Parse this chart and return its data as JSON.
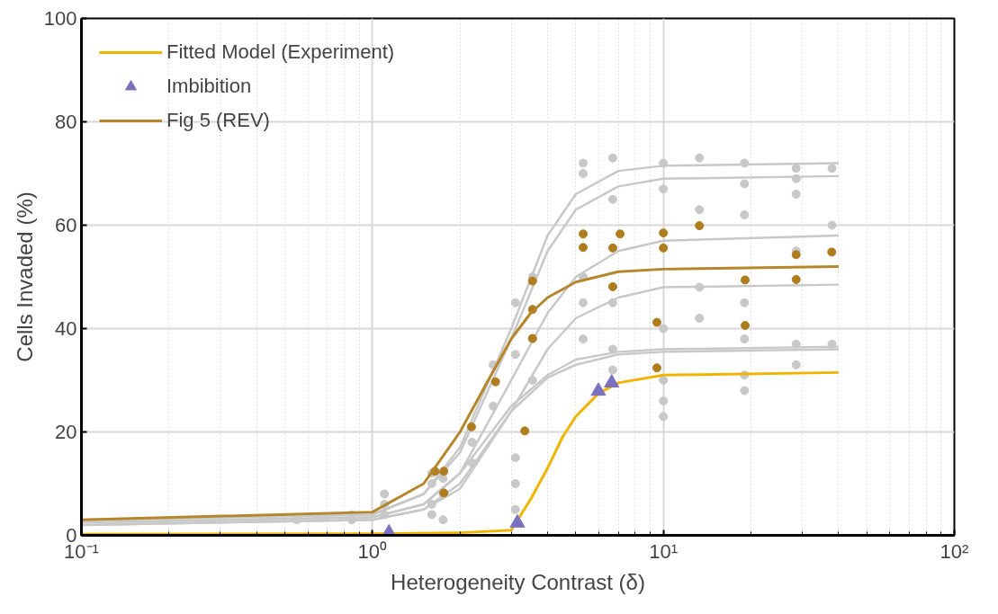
{
  "chart_data": {
    "type": "line",
    "xlabel": "Heterogeneity Contrast (δ)",
    "ylabel": "Cells Invaded (%)",
    "log": "x",
    "xlim": [
      0.1,
      100
    ],
    "xticks": [
      {
        "value": 0.1,
        "label": "10⁻¹"
      },
      {
        "value": 1,
        "label": "10⁰"
      },
      {
        "value": 10,
        "label": "10¹"
      },
      {
        "value": 100,
        "label": "10²"
      }
    ],
    "ylim": [
      0,
      100
    ],
    "yticks": [
      0,
      20,
      40,
      60,
      80,
      100
    ],
    "grid": true,
    "legend": "top left",
    "series": [
      {
        "type": "line",
        "color": "#c8c8c8",
        "x": [
          0.1,
          1,
          1.5,
          2,
          3,
          4,
          5,
          7,
          10,
          40
        ],
        "values": [
          3,
          4,
          8,
          17,
          40,
          58,
          66,
          70.5,
          71.5,
          72
        ]
      },
      {
        "type": "line",
        "color": "#c8c8c8",
        "x": [
          0.1,
          1,
          1.5,
          2,
          3,
          4,
          5,
          7,
          10,
          40
        ],
        "values": [
          3,
          4,
          8,
          16,
          38,
          55,
          63,
          67.5,
          69,
          69.5
        ]
      },
      {
        "type": "line",
        "color": "#c8c8c8",
        "x": [
          0.1,
          1,
          1.5,
          2,
          3,
          4,
          5,
          7,
          10,
          40
        ],
        "values": [
          2.5,
          3.5,
          6,
          12,
          30,
          43,
          50,
          55,
          57,
          58
        ]
      },
      {
        "type": "line",
        "color": "#c8c8c8",
        "x": [
          0.1,
          1,
          1.5,
          2,
          3,
          4,
          5,
          7,
          10,
          40
        ],
        "values": [
          2,
          3,
          5,
          9,
          24,
          36,
          42,
          46,
          48,
          48.5
        ]
      },
      {
        "type": "line",
        "color": "#c8c8c8",
        "x": [
          0.1,
          1,
          1.5,
          2,
          3,
          4,
          5,
          7,
          10,
          40
        ],
        "values": [
          2.5,
          3.5,
          6,
          12,
          25,
          31,
          34,
          35.5,
          36,
          36.5
        ]
      },
      {
        "type": "line",
        "color": "#c8c8c8",
        "x": [
          0.1,
          1,
          1.5,
          2,
          3,
          4,
          5,
          7,
          10,
          40
        ],
        "values": [
          2,
          3,
          5,
          10,
          24,
          30.5,
          33,
          35,
          35.5,
          36
        ]
      },
      {
        "type": "scatter",
        "marker": "circle",
        "color": "#c8c8c8",
        "x": [
          0.55,
          0.55,
          0.85,
          0.85,
          1.1,
          1.1,
          1.1,
          1.6,
          1.6,
          1.6,
          1.6,
          1.75,
          1.75,
          1.75,
          2.2,
          2.2,
          2.6,
          2.6,
          3.1,
          3.1,
          3.1,
          3.1,
          3.1,
          3.55,
          3.55,
          3.55,
          5.3,
          5.3,
          5.3,
          5.3,
          5.3,
          6.7,
          6.7,
          6.7,
          6.7,
          6.7,
          10,
          10,
          10,
          10,
          10,
          10,
          13.3,
          13.3,
          13.3,
          13.3,
          19,
          19,
          19,
          19,
          19,
          19,
          19,
          28.6,
          28.6,
          28.6,
          28.6,
          28.6,
          28.6,
          38,
          38,
          38
        ],
        "values": [
          3,
          3.5,
          3,
          4,
          4,
          6,
          8,
          4,
          6,
          10,
          12,
          3,
          8,
          11,
          14,
          18,
          25,
          33,
          5,
          10,
          15,
          35,
          45,
          30,
          38,
          50,
          38,
          45,
          50,
          70,
          72,
          32,
          36,
          45,
          65,
          73,
          23,
          26,
          30,
          40,
          67,
          72,
          42,
          48,
          63,
          73,
          28,
          31,
          38,
          45,
          62,
          68,
          72,
          33,
          37,
          55,
          66,
          69,
          71,
          37,
          60,
          71
        ]
      },
      {
        "type": "scatter",
        "marker": "circle",
        "color": "#b07d1e",
        "x": [
          1.64,
          1.76,
          1.76,
          2.19,
          2.65,
          3.34,
          3.55,
          3.55,
          3.55,
          5.3,
          5.3,
          6.7,
          6.7,
          7.1,
          9.5,
          9.5,
          10,
          10,
          13.3,
          19.1,
          19.1,
          28.6,
          28.6,
          37.9
        ],
        "values": [
          12.4,
          12.4,
          8.2,
          21,
          29.7,
          20.2,
          49.2,
          43.7,
          38.1,
          58.3,
          55.7,
          55.6,
          48.1,
          58.3,
          41.2,
          32.4,
          58.5,
          55.6,
          59.9,
          49.4,
          40.6,
          54.3,
          49.5,
          54.8
        ]
      },
      {
        "name": "Fitted Model (Experiment)",
        "color": "#f0b400",
        "x": [
          0.1,
          1,
          2,
          3,
          3.5,
          4,
          4.5,
          5,
          6,
          7,
          10,
          40
        ],
        "values": [
          0.2,
          0.3,
          0.5,
          1,
          7,
          13,
          19,
          23,
          27.5,
          29.5,
          31,
          31.5
        ]
      },
      {
        "type": "scatter",
        "name": "Imbibition",
        "marker": "triangle",
        "color": "#7a72c0",
        "x": [
          1.14,
          3.15,
          5.98,
          6.64
        ],
        "values": [
          0.5,
          2.4,
          27.9,
          29.5
        ]
      },
      {
        "name": "Fig 5 (REV)",
        "color": "#b5862b",
        "x": [
          0.1,
          1,
          1.5,
          2,
          2.5,
          3,
          3.5,
          4,
          5,
          7,
          10,
          40
        ],
        "values": [
          3,
          4.5,
          10,
          20,
          30,
          38,
          43,
          46,
          49,
          51,
          51.5,
          52
        ]
      }
    ]
  }
}
